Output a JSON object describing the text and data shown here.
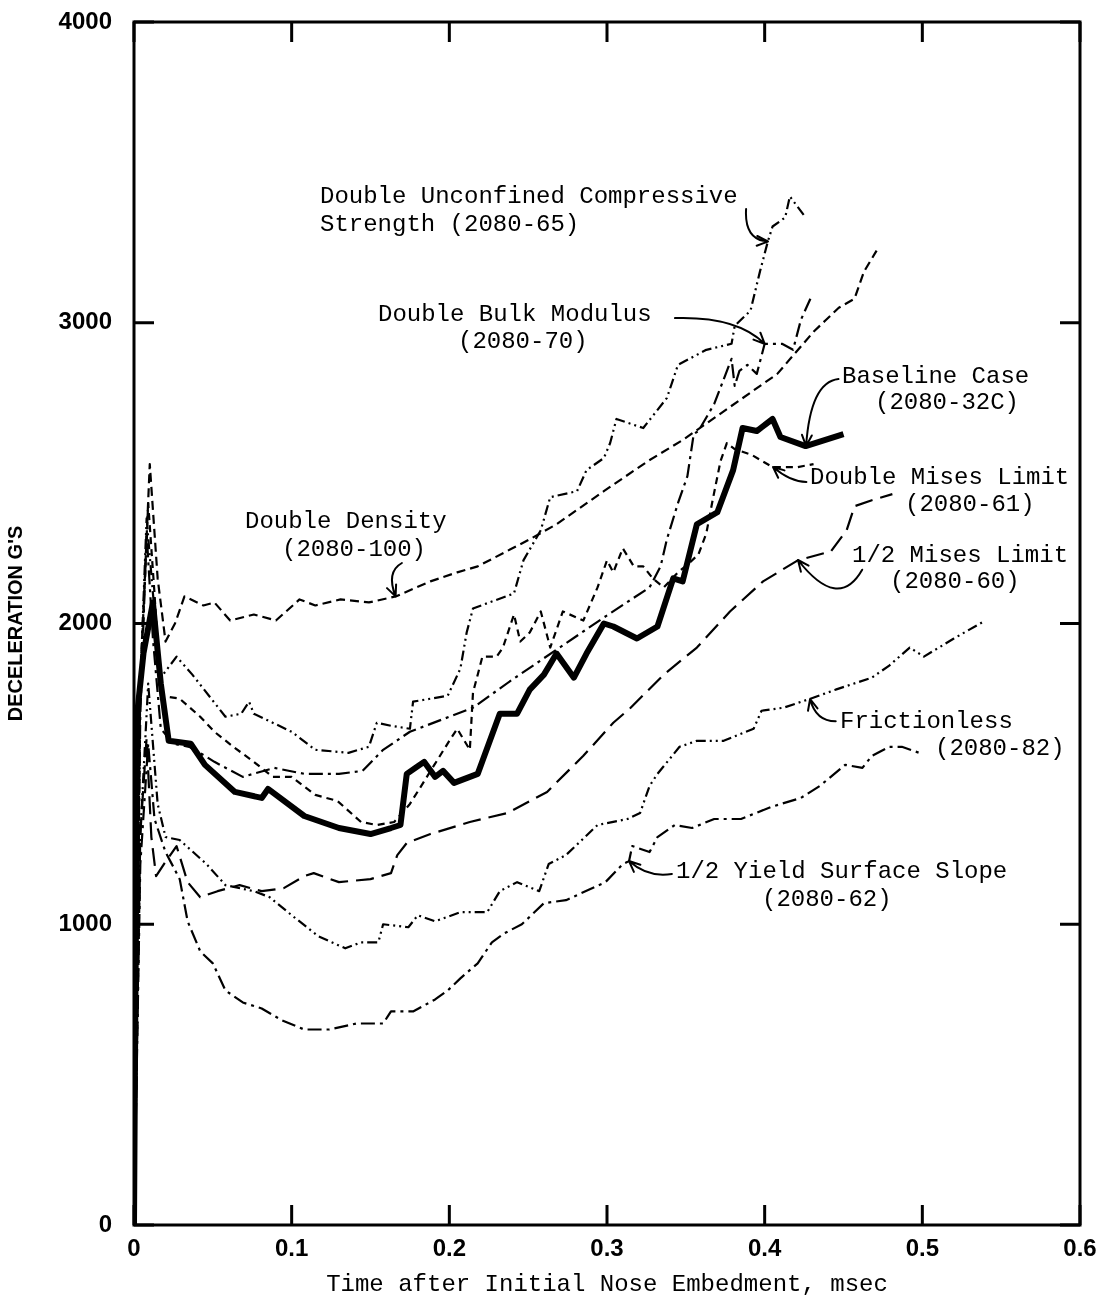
{
  "chart_data": {
    "type": "line",
    "xlabel": "Time after Initial Nose Embedment, msec",
    "ylabel": "DECELERATION G'S",
    "xlim": [
      0,
      0.6
    ],
    "xticks": [
      0,
      0.1,
      0.2,
      0.3,
      0.4,
      0.5,
      0.6
    ],
    "ylim": [
      0,
      4000
    ],
    "yticks": [
      0,
      1000,
      2000,
      3000,
      4000
    ],
    "grid": false,
    "legend": false,
    "marker": "none",
    "annotations": [
      {
        "text": "Double Unconfined Compressive\nStrength (2080-65)",
        "x": 0.402,
        "y": 3270
      },
      {
        "text": "Double Bulk Modulus\n(2080-70)",
        "x": 0.4,
        "y": 2930
      },
      {
        "text": "Baseline Case\n(2080-32C)",
        "x": 0.426,
        "y": 2590
      },
      {
        "text": "Double Mises Limit\n(2080-61)",
        "x": 0.405,
        "y": 2520
      },
      {
        "text": "Double Density\n(2080-100)",
        "x": 0.166,
        "y": 2090
      },
      {
        "text": "1/2 Mises Limit\n(2080-60)",
        "x": 0.421,
        "y": 2210
      },
      {
        "text": "Frictionless\n(2080-82)",
        "x": 0.429,
        "y": 1750
      },
      {
        "text": "1/2 Yield Surface Slope\n(2080-62)",
        "x": 0.314,
        "y": 1210
      }
    ],
    "series": [
      {
        "color": "#000000",
        "line_style": "dashed",
        "x": [
          0,
          0.004,
          0.008,
          0.012,
          0.017,
          0.027,
          0.037,
          0.058,
          0.068,
          0.073,
          0.076,
          0.1,
          0.115,
          0.136,
          0.149,
          0.154,
          0.163,
          0.175,
          0.177,
          0.199,
          0.207,
          0.211,
          0.215,
          0.241,
          0.247,
          0.258,
          0.264,
          0.281,
          0.287,
          0.298,
          0.302,
          0.306,
          0.323,
          0.338,
          0.345,
          0.363,
          0.379,
          0.381,
          0.391,
          0.397,
          0.402,
          0.405,
          0.413,
          0.416,
          0.426
        ],
        "values": [
          0,
          1800,
          2350,
          2100,
          1820,
          1890,
          1830,
          1690,
          1700,
          1740,
          1700,
          1640,
          1580,
          1570,
          1590,
          1670,
          1660,
          1650,
          1740,
          1760,
          1850,
          1970,
          2050,
          2100,
          2210,
          2310,
          2420,
          2440,
          2510,
          2550,
          2600,
          2680,
          2650,
          2750,
          2860,
          2910,
          2930,
          2990,
          3040,
          3170,
          3270,
          3320,
          3350,
          3420,
          3350
        ]
      },
      {
        "color": "#000000",
        "line_style": "dashed",
        "x": [
          0,
          0.004,
          0.008,
          0.012,
          0.017,
          0.025,
          0.035,
          0.045,
          0.051,
          0.069,
          0.089,
          0.108,
          0.13,
          0.145,
          0.158,
          0.175,
          0.2,
          0.215,
          0.239,
          0.27,
          0.298,
          0.327,
          0.334,
          0.338,
          0.345,
          0.351,
          0.355,
          0.358,
          0.368,
          0.379,
          0.381,
          0.384,
          0.389,
          0.395,
          0.4,
          0.411,
          0.418,
          0.423,
          0.429
        ],
        "values": [
          0,
          1700,
          2300,
          1950,
          1650,
          1600,
          1590,
          1560,
          1540,
          1490,
          1520,
          1500,
          1500,
          1510,
          1580,
          1640,
          1690,
          1720,
          1810,
          1920,
          2020,
          2120,
          2190,
          2280,
          2400,
          2490,
          2630,
          2640,
          2730,
          2880,
          2790,
          2840,
          2860,
          2830,
          2930,
          2930,
          2910,
          3010,
          3080
        ]
      },
      {
        "color": "#000000",
        "line_style": "solid",
        "x": [
          0,
          0.002,
          0.006,
          0.012,
          0.017,
          0.022,
          0.036,
          0.045,
          0.064,
          0.081,
          0.085,
          0.108,
          0.13,
          0.15,
          0.163,
          0.169,
          0.173,
          0.184,
          0.191,
          0.196,
          0.203,
          0.218,
          0.232,
          0.243,
          0.251,
          0.26,
          0.268,
          0.279,
          0.287,
          0.298,
          0.304,
          0.319,
          0.332,
          0.342,
          0.348,
          0.357,
          0.37,
          0.38,
          0.386,
          0.395,
          0.405,
          0.41,
          0.426,
          0.45
        ],
        "values": [
          0,
          1700,
          1900,
          2070,
          1800,
          1610,
          1600,
          1530,
          1440,
          1420,
          1450,
          1360,
          1320,
          1300,
          1320,
          1330,
          1500,
          1540,
          1490,
          1510,
          1470,
          1500,
          1700,
          1700,
          1780,
          1830,
          1900,
          1820,
          1900,
          2000,
          1990,
          1950,
          1990,
          2150,
          2140,
          2330,
          2370,
          2510,
          2650,
          2640,
          2680,
          2620,
          2590,
          2630
        ]
      },
      {
        "color": "#000000",
        "line_style": "dashed",
        "x": [
          0,
          0.004,
          0.009,
          0.013,
          0.017,
          0.029,
          0.042,
          0.051,
          0.063,
          0.076,
          0.088,
          0.1,
          0.115,
          0.129,
          0.144,
          0.154,
          0.165,
          0.175,
          0.181,
          0.2,
          0.205,
          0.213,
          0.215,
          0.221,
          0.23,
          0.234,
          0.241,
          0.245,
          0.251,
          0.258,
          0.264,
          0.272,
          0.285,
          0.294,
          0.3,
          0.304,
          0.31,
          0.317,
          0.323,
          0.329,
          0.336,
          0.345,
          0.352,
          0.358,
          0.363,
          0.367,
          0.372,
          0.376,
          0.381,
          0.392,
          0.405,
          0.421,
          0.431
        ],
        "values": [
          0,
          1800,
          2400,
          2100,
          1760,
          1750,
          1690,
          1640,
          1590,
          1540,
          1490,
          1490,
          1430,
          1410,
          1340,
          1330,
          1340,
          1400,
          1450,
          1610,
          1650,
          1580,
          1770,
          1890,
          1890,
          1920,
          2030,
          1940,
          1970,
          2040,
          1920,
          2040,
          2010,
          2120,
          2210,
          2170,
          2250,
          2190,
          2190,
          2150,
          2120,
          2170,
          2200,
          2230,
          2300,
          2410,
          2540,
          2600,
          2580,
          2560,
          2520,
          2520,
          2530
        ]
      },
      {
        "color": "#000000",
        "line_style": "dashed",
        "x": [
          0,
          0.004,
          0.008,
          0.011,
          0.014,
          0.019,
          0.023,
          0.027,
          0.034,
          0.042,
          0.053,
          0.067,
          0.081,
          0.095,
          0.108,
          0.114,
          0.13,
          0.15,
          0.163,
          0.167,
          0.173,
          0.188,
          0.213,
          0.237,
          0.262,
          0.285,
          0.304,
          0.315,
          0.336,
          0.357,
          0.378,
          0.399,
          0.421,
          0.442,
          0.452,
          0.457,
          0.468,
          0.481
        ],
        "values": [
          0,
          1300,
          1620,
          1290,
          1160,
          1200,
          1230,
          1260,
          1140,
          1090,
          1110,
          1130,
          1110,
          1120,
          1160,
          1170,
          1140,
          1150,
          1170,
          1230,
          1270,
          1300,
          1340,
          1370,
          1440,
          1560,
          1670,
          1720,
          1830,
          1920,
          2040,
          2140,
          2210,
          2240,
          2310,
          2390,
          2410,
          2430
        ]
      },
      {
        "color": "#000000",
        "line_style": "dashed",
        "x": [
          0,
          0.004,
          0.01,
          0.015,
          0.02,
          0.026,
          0.032,
          0.044,
          0.051,
          0.061,
          0.076,
          0.09,
          0.105,
          0.115,
          0.131,
          0.149,
          0.166,
          0.188,
          0.205,
          0.218,
          0.251,
          0.268,
          0.298,
          0.326,
          0.348,
          0.378,
          0.408,
          0.431,
          0.439,
          0.447,
          0.457,
          0.463,
          0.471
        ],
        "values": [
          0,
          1800,
          2530,
          2150,
          1940,
          2000,
          2090,
          2060,
          2070,
          2010,
          2030,
          2010,
          2080,
          2060,
          2080,
          2070,
          2090,
          2140,
          2170,
          2190,
          2280,
          2330,
          2440,
          2540,
          2610,
          2720,
          2830,
          2970,
          3010,
          3050,
          3080,
          3170,
          3240
        ]
      },
      {
        "color": "#000000",
        "line_style": "dashed",
        "x": [
          0,
          0.004,
          0.009,
          0.015,
          0.02,
          0.029,
          0.046,
          0.058,
          0.076,
          0.086,
          0.1,
          0.117,
          0.134,
          0.144,
          0.155,
          0.158,
          0.174,
          0.18,
          0.191,
          0.207,
          0.224,
          0.232,
          0.243,
          0.257,
          0.263,
          0.274,
          0.294,
          0.313,
          0.321,
          0.327,
          0.332,
          0.346,
          0.357,
          0.374,
          0.393,
          0.398,
          0.412,
          0.429,
          0.445,
          0.468,
          0.479,
          0.492,
          0.501,
          0.52,
          0.54
        ],
        "values": [
          0,
          1300,
          1800,
          1400,
          1290,
          1280,
          1200,
          1130,
          1110,
          1090,
          1030,
          960,
          920,
          940,
          940,
          1000,
          990,
          1030,
          1010,
          1040,
          1040,
          1110,
          1140,
          1110,
          1200,
          1230,
          1330,
          1350,
          1370,
          1460,
          1500,
          1590,
          1610,
          1610,
          1650,
          1710,
          1720,
          1750,
          1780,
          1820,
          1860,
          1920,
          1890,
          1950,
          2010
        ]
      },
      {
        "color": "#000000",
        "line_style": "dashed",
        "x": [
          0,
          0.004,
          0.009,
          0.013,
          0.02,
          0.029,
          0.034,
          0.042,
          0.05,
          0.058,
          0.069,
          0.081,
          0.094,
          0.108,
          0.124,
          0.141,
          0.158,
          0.163,
          0.177,
          0.191,
          0.199,
          0.207,
          0.218,
          0.227,
          0.235,
          0.246,
          0.26,
          0.274,
          0.299,
          0.31,
          0.314,
          0.316,
          0.327,
          0.332,
          0.343,
          0.354,
          0.368,
          0.385,
          0.404,
          0.423,
          0.435,
          0.451,
          0.462,
          0.468,
          0.479,
          0.487,
          0.498
        ],
        "values": [
          0,
          1200,
          1600,
          1350,
          1240,
          1150,
          1010,
          910,
          870,
          780,
          740,
          720,
          680,
          650,
          650,
          670,
          670,
          710,
          710,
          750,
          780,
          820,
          870,
          940,
          970,
          1000,
          1070,
          1080,
          1140,
          1200,
          1210,
          1260,
          1240,
          1290,
          1330,
          1320,
          1350,
          1350,
          1390,
          1420,
          1460,
          1530,
          1520,
          1560,
          1590,
          1590,
          1570
        ]
      }
    ]
  }
}
